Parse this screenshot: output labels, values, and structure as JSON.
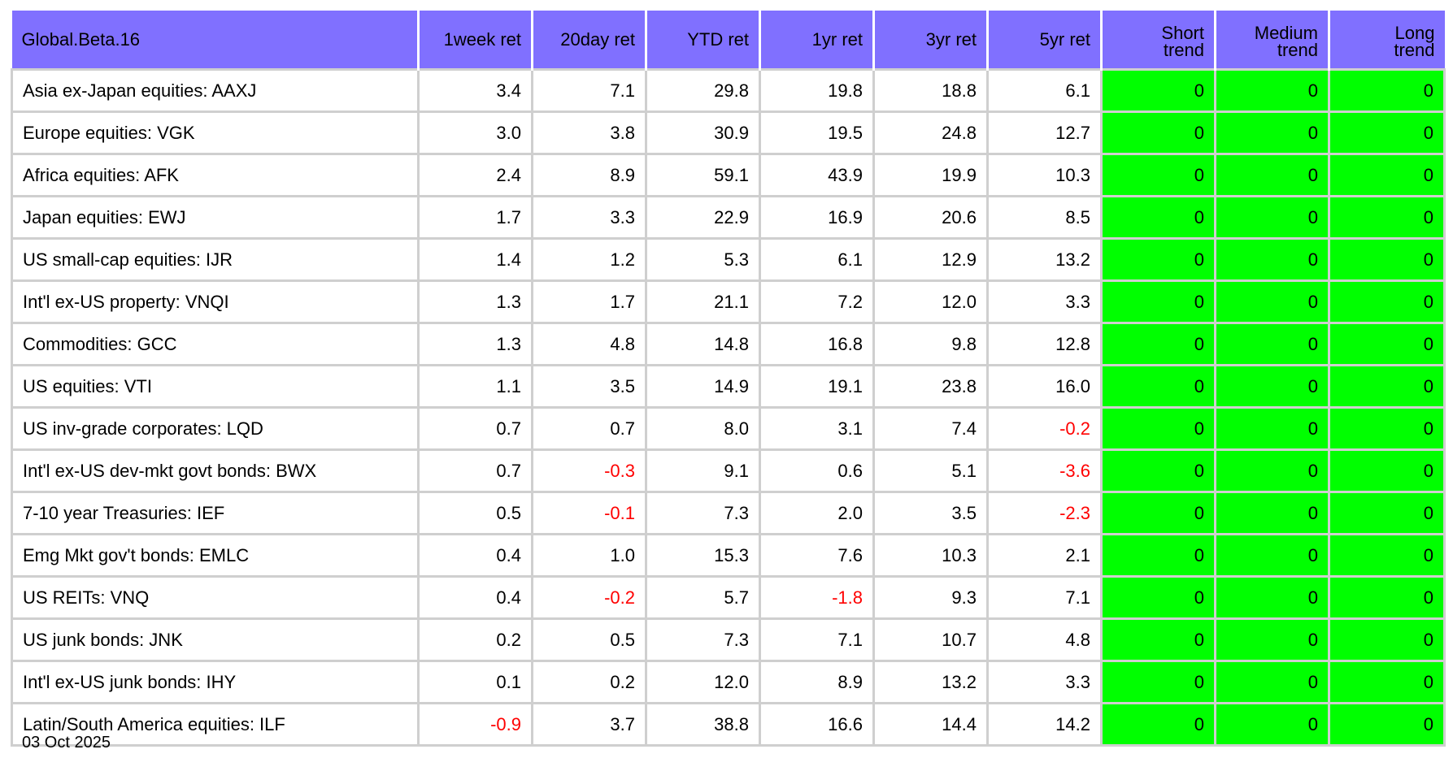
{
  "table": {
    "title": "Global.Beta.16",
    "columns": [
      "1week ret",
      "20day ret",
      "YTD ret",
      "1yr ret",
      "3yr ret",
      "5yr ret"
    ],
    "trend_columns": [
      {
        "line1": "Short",
        "line2": "trend"
      },
      {
        "line1": "Medium",
        "line2": "trend"
      },
      {
        "line1": "Long",
        "line2": "trend"
      }
    ],
    "colors": {
      "header_bg": "#8070ff",
      "trend_bg": "#00ff00",
      "negative_text": "#ff0000",
      "grid": "#cfcfcf"
    },
    "rows": [
      {
        "name": "Asia ex-Japan equities: AAXJ",
        "values": [
          "3.4",
          "7.1",
          "29.8",
          "19.8",
          "18.8",
          "6.1"
        ],
        "trends": [
          "0",
          "0",
          "0"
        ]
      },
      {
        "name": "Europe equities: VGK",
        "values": [
          "3.0",
          "3.8",
          "30.9",
          "19.5",
          "24.8",
          "12.7"
        ],
        "trends": [
          "0",
          "0",
          "0"
        ]
      },
      {
        "name": "Africa equities: AFK",
        "values": [
          "2.4",
          "8.9",
          "59.1",
          "43.9",
          "19.9",
          "10.3"
        ],
        "trends": [
          "0",
          "0",
          "0"
        ]
      },
      {
        "name": "Japan equities: EWJ",
        "values": [
          "1.7",
          "3.3",
          "22.9",
          "16.9",
          "20.6",
          "8.5"
        ],
        "trends": [
          "0",
          "0",
          "0"
        ]
      },
      {
        "name": "US small-cap equities: IJR",
        "values": [
          "1.4",
          "1.2",
          "5.3",
          "6.1",
          "12.9",
          "13.2"
        ],
        "trends": [
          "0",
          "0",
          "0"
        ]
      },
      {
        "name": "Int'l ex-US property: VNQI",
        "values": [
          "1.3",
          "1.7",
          "21.1",
          "7.2",
          "12.0",
          "3.3"
        ],
        "trends": [
          "0",
          "0",
          "0"
        ]
      },
      {
        "name": "Commodities: GCC",
        "values": [
          "1.3",
          "4.8",
          "14.8",
          "16.8",
          "9.8",
          "12.8"
        ],
        "trends": [
          "0",
          "0",
          "0"
        ]
      },
      {
        "name": "US equities: VTI",
        "values": [
          "1.1",
          "3.5",
          "14.9",
          "19.1",
          "23.8",
          "16.0"
        ],
        "trends": [
          "0",
          "0",
          "0"
        ]
      },
      {
        "name": "US inv-grade corporates: LQD",
        "values": [
          "0.7",
          "0.7",
          "8.0",
          "3.1",
          "7.4",
          "-0.2"
        ],
        "trends": [
          "0",
          "0",
          "0"
        ]
      },
      {
        "name": "Int'l ex-US dev-mkt govt bonds: BWX",
        "values": [
          "0.7",
          "-0.3",
          "9.1",
          "0.6",
          "5.1",
          "-3.6"
        ],
        "trends": [
          "0",
          "0",
          "0"
        ]
      },
      {
        "name": "7-10 year Treasuries: IEF",
        "values": [
          "0.5",
          "-0.1",
          "7.3",
          "2.0",
          "3.5",
          "-2.3"
        ],
        "trends": [
          "0",
          "0",
          "0"
        ]
      },
      {
        "name": "Emg Mkt gov't bonds: EMLC",
        "values": [
          "0.4",
          "1.0",
          "15.3",
          "7.6",
          "10.3",
          "2.1"
        ],
        "trends": [
          "0",
          "0",
          "0"
        ]
      },
      {
        "name": "US REITs: VNQ",
        "values": [
          "0.4",
          "-0.2",
          "5.7",
          "-1.8",
          "9.3",
          "7.1"
        ],
        "trends": [
          "0",
          "0",
          "0"
        ]
      },
      {
        "name": "US junk bonds: JNK",
        "values": [
          "0.2",
          "0.5",
          "7.3",
          "7.1",
          "10.7",
          "4.8"
        ],
        "trends": [
          "0",
          "0",
          "0"
        ]
      },
      {
        "name": "Int'l ex-US junk bonds: IHY",
        "values": [
          "0.1",
          "0.2",
          "12.0",
          "8.9",
          "13.2",
          "3.3"
        ],
        "trends": [
          "0",
          "0",
          "0"
        ]
      },
      {
        "name": "Latin/South America equities: ILF",
        "values": [
          "-0.9",
          "3.7",
          "38.8",
          "16.6",
          "14.4",
          "14.2"
        ],
        "trends": [
          "0",
          "0",
          "0"
        ]
      }
    ]
  },
  "footer": {
    "date": "03 Oct 2025"
  }
}
